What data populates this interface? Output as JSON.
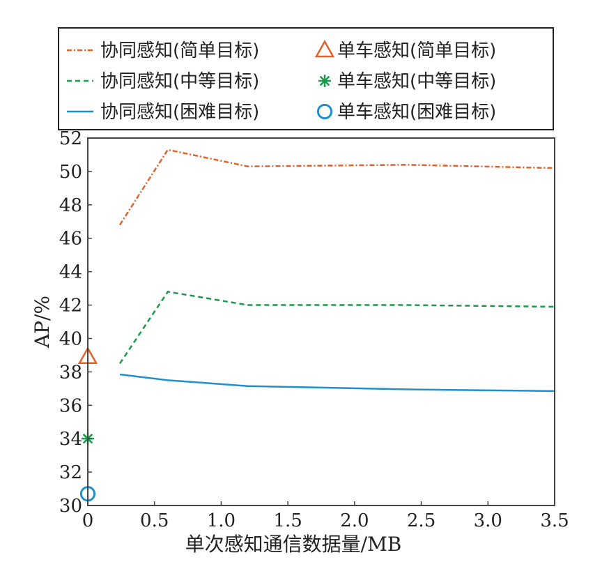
{
  "chart_data": {
    "type": "line",
    "xlabel": "单次感知通信数据量/MB",
    "ylabel": "AP/%",
    "xlim": [
      0,
      3.5
    ],
    "ylim": [
      30,
      52
    ],
    "xticks": [
      "0",
      "0.5",
      "1.0",
      "1.5",
      "2.0",
      "2.5",
      "3.0",
      "3.5"
    ],
    "yticks": [
      "30",
      "32",
      "34",
      "36",
      "38",
      "40",
      "42",
      "44",
      "46",
      "48",
      "50",
      "52"
    ],
    "grid": false,
    "legend_position": "top",
    "series": [
      {
        "name": "协同感知(简单目标)",
        "kind": "line",
        "style": "dashdot",
        "color": "#e0622b",
        "x": [
          0.24,
          0.6,
          1.2,
          2.4,
          3.5
        ],
        "y": [
          46.8,
          51.3,
          50.3,
          50.4,
          50.2
        ]
      },
      {
        "name": "协同感知(中等目标)",
        "kind": "line",
        "style": "dashed",
        "color": "#1a9a4a",
        "x": [
          0.24,
          0.6,
          1.2,
          2.4,
          3.5
        ],
        "y": [
          38.5,
          42.8,
          42.0,
          42.0,
          41.9
        ]
      },
      {
        "name": "协同感知(困难目标)",
        "kind": "line",
        "style": "solid",
        "color": "#1f8fcf",
        "x": [
          0.24,
          0.6,
          1.2,
          2.4,
          3.5
        ],
        "y": [
          37.85,
          37.5,
          37.15,
          36.95,
          36.85
        ]
      },
      {
        "name": "单车感知(简单目标)",
        "kind": "marker",
        "marker": "triangle",
        "color": "#e0622b",
        "x": [
          0
        ],
        "y": [
          38.9
        ]
      },
      {
        "name": "单车感知(中等目标)",
        "kind": "marker",
        "marker": "star",
        "color": "#1a9a4a",
        "x": [
          0
        ],
        "y": [
          34.0
        ]
      },
      {
        "name": "单车感知(困难目标)",
        "kind": "marker",
        "marker": "circle",
        "color": "#1f8fcf",
        "x": [
          0
        ],
        "y": [
          30.7
        ]
      }
    ]
  }
}
